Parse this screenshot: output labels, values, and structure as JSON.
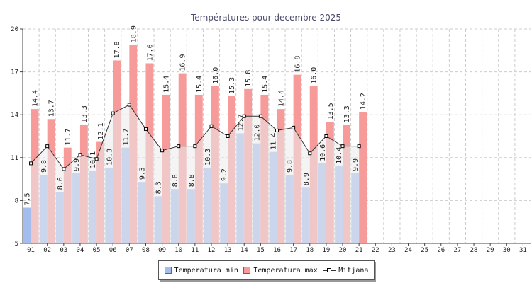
{
  "chart_data": {
    "type": "bar",
    "title": "Températures pour decembre 2025",
    "categories": [
      "01",
      "02",
      "03",
      "04",
      "05",
      "06",
      "07",
      "08",
      "09",
      "10",
      "11",
      "12",
      "13",
      "14",
      "15",
      "16",
      "17",
      "18",
      "19",
      "20",
      "21",
      "22",
      "23",
      "24",
      "25",
      "26",
      "27",
      "28",
      "29",
      "30",
      "31"
    ],
    "ylim": [
      5,
      20
    ],
    "yticks": [
      5,
      8,
      11,
      14,
      17,
      20
    ],
    "grid": true,
    "legend_position": "bottom",
    "series": [
      {
        "name": "Temperatura min",
        "color": "#a4bdee",
        "values": [
          7.5,
          9.8,
          8.6,
          9.9,
          10.1,
          10.3,
          11.7,
          9.3,
          8.3,
          8.8,
          8.8,
          10.3,
          9.2,
          12.7,
          12.0,
          11.4,
          9.8,
          8.9,
          10.6,
          10.4,
          9.9,
          null,
          null,
          null,
          null,
          null,
          null,
          null,
          null,
          null,
          null
        ]
      },
      {
        "name": "Temperatura max",
        "color": "#f79a9a",
        "values": [
          14.4,
          13.7,
          11.7,
          13.3,
          12.1,
          17.8,
          18.9,
          17.6,
          15.4,
          16.9,
          15.4,
          16.0,
          15.3,
          15.8,
          15.4,
          14.4,
          16.8,
          16.0,
          13.5,
          13.3,
          14.2,
          null,
          null,
          null,
          null,
          null,
          null,
          null,
          null,
          null,
          null
        ]
      },
      {
        "name": "Mitjana",
        "color": "#333333",
        "values": [
          10.6,
          11.8,
          10.2,
          11.2,
          10.9,
          14.1,
          14.7,
          13.0,
          11.5,
          11.8,
          11.8,
          13.2,
          12.5,
          13.9,
          13.9,
          12.9,
          13.1,
          11.3,
          12.5,
          11.8,
          11.8,
          null,
          null,
          null,
          null,
          null,
          null,
          null,
          null,
          null,
          null
        ]
      }
    ]
  }
}
